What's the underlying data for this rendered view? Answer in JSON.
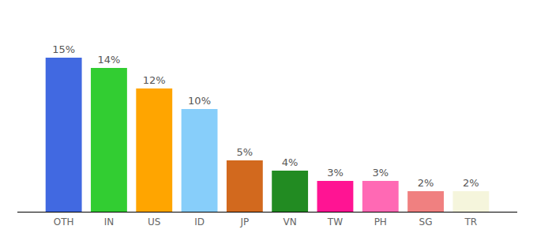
{
  "chart_data": {
    "type": "bar",
    "categories": [
      "OTH",
      "IN",
      "US",
      "ID",
      "JP",
      "VN",
      "TW",
      "PH",
      "SG",
      "TR"
    ],
    "values": [
      15,
      14,
      12,
      10,
      5,
      4,
      3,
      3,
      2,
      2
    ],
    "value_labels": [
      "15%",
      "14%",
      "12%",
      "10%",
      "5%",
      "4%",
      "3%",
      "3%",
      "2%",
      "2%"
    ],
    "colors": [
      "#4169e1",
      "#32cd32",
      "#ffa500",
      "#87cefa",
      "#d2691e",
      "#228b22",
      "#ff1493",
      "#ff69b4",
      "#f08080",
      "#f5f5dc"
    ],
    "data_labels": true,
    "tick_labels": "x"
  }
}
